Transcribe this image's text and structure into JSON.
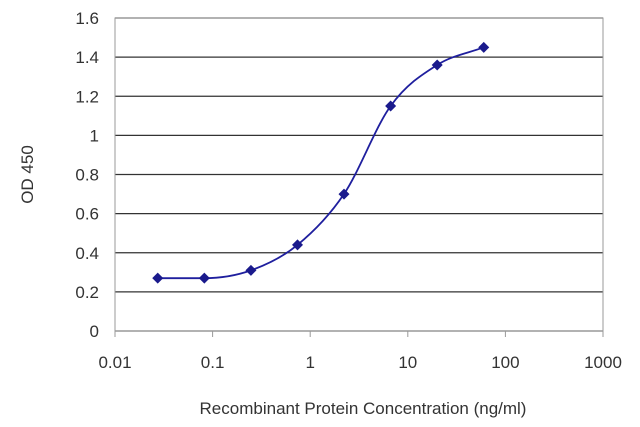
{
  "chart_data": {
    "type": "scatter",
    "title": "",
    "xlabel": "Recombinant Protein Concentration (ng/ml)",
    "ylabel": "OD 450",
    "x_scale": "log",
    "xlim": [
      0.01,
      1000
    ],
    "ylim": [
      0,
      1.6
    ],
    "x_ticks": [
      0.01,
      0.1,
      1,
      10,
      100,
      1000
    ],
    "x_tick_labels": [
      "0.01",
      "0.1",
      "1",
      "10",
      "100",
      "1000"
    ],
    "y_ticks": [
      0,
      0.2,
      0.4,
      0.6,
      0.8,
      1,
      1.2,
      1.4,
      1.6
    ],
    "y_tick_labels": [
      "0",
      "0.2",
      "0.4",
      "0.6",
      "0.8",
      "1",
      "1.2",
      "1.4",
      "1.6"
    ],
    "grid": "horizontal",
    "legend": "none",
    "series": [
      {
        "x": [
          0.0274,
          0.0823,
          0.247,
          0.741,
          2.22,
          6.67,
          20,
          60
        ],
        "y": [
          0.27,
          0.27,
          0.31,
          0.44,
          0.7,
          1.15,
          1.36,
          1.45
        ],
        "marker": "diamond",
        "fit_line": "sigmoid"
      }
    ],
    "colors": {
      "series": "#1f1f9e",
      "marker": "#1a1a8c",
      "grid": "#333333",
      "plot_border": "#999999"
    }
  }
}
